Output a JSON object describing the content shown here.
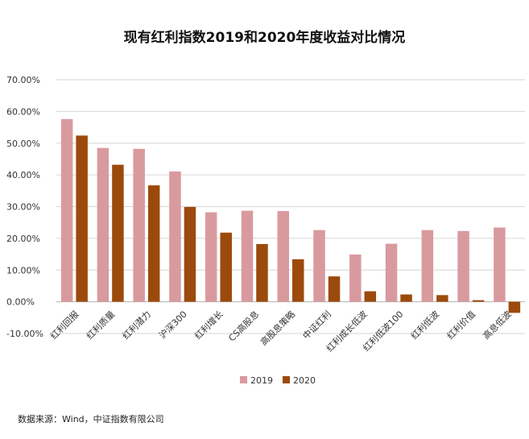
{
  "title": "现有红利指数2019和2020年度收益对比情况",
  "source": "数据来源：Wind，中证指数有限公司",
  "chart_data": {
    "type": "bar",
    "title": "现有红利指数2019和2020年度收益对比情况",
    "xlabel": "",
    "ylabel": "",
    "ylim": [
      -10,
      70
    ],
    "yticks": [
      -10,
      0,
      10,
      20,
      30,
      40,
      50,
      60,
      70
    ],
    "ytick_labels": [
      "-10.00%",
      "0.00%",
      "10.00%",
      "20.00%",
      "30.00%",
      "40.00%",
      "50.00%",
      "60.00%",
      "70.00%"
    ],
    "grid": true,
    "legend_position": "bottom",
    "categories": [
      "红利回报",
      "红利质量",
      "红利潜力",
      "沪深300",
      "红利增长",
      "CS高股息",
      "高股息策略",
      "中证红利",
      "红利成长低波",
      "红利低波100",
      "红利低波",
      "红利价值",
      "高息低波"
    ],
    "series": [
      {
        "name": "2019",
        "color": "#D99A9E",
        "values": [
          57.6,
          48.5,
          48.2,
          41.1,
          28.2,
          28.7,
          28.6,
          22.6,
          14.9,
          18.3,
          22.6,
          22.3,
          23.4
        ]
      },
      {
        "name": "2020",
        "color": "#9C4A0C",
        "values": [
          52.4,
          43.2,
          36.7,
          29.9,
          21.8,
          18.2,
          13.4,
          8.0,
          3.3,
          2.3,
          2.1,
          0.5,
          -3.5
        ]
      }
    ]
  }
}
